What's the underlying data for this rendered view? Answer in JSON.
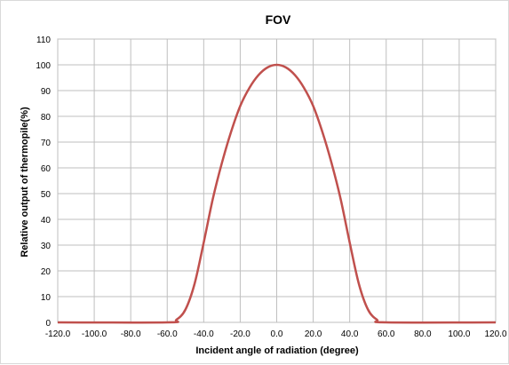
{
  "chart_data": {
    "type": "line",
    "title": "FOV",
    "xlabel": "Incident angle of radiation (degree)",
    "ylabel": "Relative output of thermopile(%)",
    "xlim": [
      -120,
      120
    ],
    "ylim": [
      0,
      110
    ],
    "x_ticks": [
      "-120.0",
      "-100.0",
      "-80.0",
      "-60.0",
      "-40.0",
      "-20.0",
      "0.0",
      "20.0",
      "40.0",
      "60.0",
      "80.0",
      "100.0",
      "120.0"
    ],
    "y_ticks": [
      "0",
      "10",
      "20",
      "30",
      "40",
      "50",
      "60",
      "70",
      "80",
      "90",
      "100",
      "110"
    ],
    "grid": true,
    "legend": "none",
    "line_color": "#c0504d",
    "series": [
      {
        "x": [
          -120,
          -60,
          -55,
          -50,
          -45,
          -40,
          -35,
          -30,
          -25,
          -20,
          -15,
          -10,
          -5,
          0,
          5,
          10,
          15,
          20,
          25,
          30,
          35,
          40,
          45,
          50,
          55,
          60,
          120
        ],
        "y": [
          0,
          0,
          1,
          5,
          15,
          31,
          48,
          62,
          74,
          84,
          91,
          96,
          99,
          100,
          99,
          96,
          91,
          84,
          74,
          62,
          48,
          31,
          15,
          5,
          1,
          0,
          0
        ]
      }
    ]
  }
}
